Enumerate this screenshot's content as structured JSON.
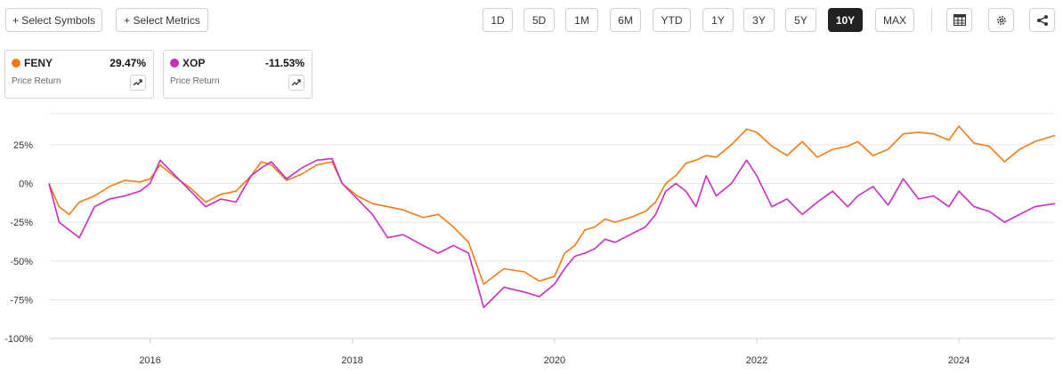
{
  "toolbar": {
    "select_symbols": "+ Select Symbols",
    "select_metrics": "+ Select Metrics",
    "ranges": [
      "1D",
      "5D",
      "1M",
      "6M",
      "YTD",
      "1Y",
      "3Y",
      "5Y",
      "10Y",
      "MAX"
    ],
    "active_range": "10Y",
    "icons": [
      "table-icon",
      "settings-gear-icon",
      "share-icon"
    ]
  },
  "cards": [
    {
      "symbol": "FENY",
      "value": "29.47%",
      "subtitle": "Price Return",
      "color": "#f27a13",
      "icon": "trend-chart-icon"
    },
    {
      "symbol": "XOP",
      "value": "-11.53%",
      "subtitle": "Price Return",
      "color": "#cc2bbf",
      "icon": "trend-chart-icon"
    }
  ],
  "chart_data": {
    "type": "line",
    "title": "",
    "xlabel": "",
    "ylabel": "",
    "x_unit": "year",
    "xlim": [
      2015.0,
      2024.95
    ],
    "ylim": [
      -100,
      45
    ],
    "y_ticks": [
      25,
      0,
      -25,
      -50,
      -75,
      -100
    ],
    "y_tick_labels": [
      "25%",
      "0%",
      "-25%",
      "-50%",
      "-75%",
      "-100%"
    ],
    "x_ticks": [
      2016,
      2018,
      2020,
      2022,
      2024
    ],
    "x_tick_labels": [
      "2016",
      "2018",
      "2020",
      "2022",
      "2024"
    ],
    "grid": "horizontal",
    "legend": "cards above chart",
    "series": [
      {
        "name": "FENY",
        "color": "#f27a13",
        "x": [
          2015.0,
          2015.1,
          2015.2,
          2015.3,
          2015.45,
          2015.6,
          2015.75,
          2015.9,
          2016.0,
          2016.1,
          2016.25,
          2016.4,
          2016.55,
          2016.7,
          2016.85,
          2017.0,
          2017.1,
          2017.2,
          2017.35,
          2017.5,
          2017.65,
          2017.8,
          2017.9,
          2018.05,
          2018.2,
          2018.35,
          2018.5,
          2018.7,
          2018.85,
          2019.0,
          2019.15,
          2019.3,
          2019.5,
          2019.7,
          2019.85,
          2020.0,
          2020.1,
          2020.2,
          2020.3,
          2020.4,
          2020.5,
          2020.6,
          2020.75,
          2020.9,
          2021.0,
          2021.1,
          2021.2,
          2021.3,
          2021.4,
          2021.5,
          2021.6,
          2021.75,
          2021.9,
          2022.0,
          2022.15,
          2022.3,
          2022.45,
          2022.6,
          2022.75,
          2022.9,
          2023.0,
          2023.15,
          2023.3,
          2023.45,
          2023.6,
          2023.75,
          2023.9,
          2024.0,
          2024.15,
          2024.3,
          2024.45,
          2024.6,
          2024.75,
          2024.95
        ],
        "y": [
          0,
          -15,
          -20,
          -12,
          -8,
          -2,
          2,
          1,
          3,
          12,
          4,
          -3,
          -12,
          -7,
          -5,
          5,
          14,
          12,
          2,
          6,
          12,
          14,
          0,
          -8,
          -13,
          -15,
          -17,
          -22,
          -20,
          -28,
          -38,
          -65,
          -55,
          -57,
          -63,
          -60,
          -45,
          -40,
          -30,
          -28,
          -23,
          -25,
          -22,
          -18,
          -12,
          0,
          5,
          13,
          15,
          18,
          17,
          25,
          35,
          33,
          24,
          18,
          27,
          17,
          22,
          24,
          27,
          18,
          22,
          32,
          33,
          32,
          28,
          37,
          26,
          24,
          14,
          22,
          27,
          31
        ]
      },
      {
        "name": "XOP",
        "color": "#cc2bbf",
        "x": [
          2015.0,
          2015.1,
          2015.2,
          2015.3,
          2015.45,
          2015.6,
          2015.75,
          2015.9,
          2016.0,
          2016.1,
          2016.25,
          2016.4,
          2016.55,
          2016.7,
          2016.85,
          2017.0,
          2017.1,
          2017.2,
          2017.35,
          2017.5,
          2017.65,
          2017.8,
          2017.9,
          2018.05,
          2018.2,
          2018.35,
          2018.5,
          2018.7,
          2018.85,
          2019.0,
          2019.15,
          2019.3,
          2019.5,
          2019.7,
          2019.85,
          2020.0,
          2020.1,
          2020.2,
          2020.3,
          2020.4,
          2020.5,
          2020.6,
          2020.75,
          2020.9,
          2021.0,
          2021.1,
          2021.2,
          2021.3,
          2021.4,
          2021.5,
          2021.6,
          2021.75,
          2021.9,
          2022.0,
          2022.15,
          2022.3,
          2022.45,
          2022.6,
          2022.75,
          2022.9,
          2023.0,
          2023.15,
          2023.3,
          2023.45,
          2023.6,
          2023.75,
          2023.9,
          2024.0,
          2024.15,
          2024.3,
          2024.45,
          2024.6,
          2024.75,
          2024.95
        ],
        "y": [
          0,
          -25,
          -30,
          -35,
          -15,
          -10,
          -8,
          -5,
          0,
          15,
          5,
          -5,
          -15,
          -10,
          -12,
          5,
          10,
          14,
          3,
          10,
          15,
          16,
          0,
          -10,
          -20,
          -35,
          -33,
          -40,
          -45,
          -40,
          -45,
          -80,
          -67,
          -70,
          -73,
          -65,
          -55,
          -47,
          -45,
          -42,
          -36,
          -38,
          -33,
          -28,
          -20,
          -5,
          0,
          -5,
          -15,
          5,
          -8,
          0,
          15,
          5,
          -15,
          -10,
          -20,
          -12,
          -5,
          -15,
          -8,
          -2,
          -14,
          3,
          -10,
          -8,
          -15,
          -5,
          -15,
          -18,
          -25,
          -20,
          -15,
          -13
        ]
      }
    ]
  }
}
